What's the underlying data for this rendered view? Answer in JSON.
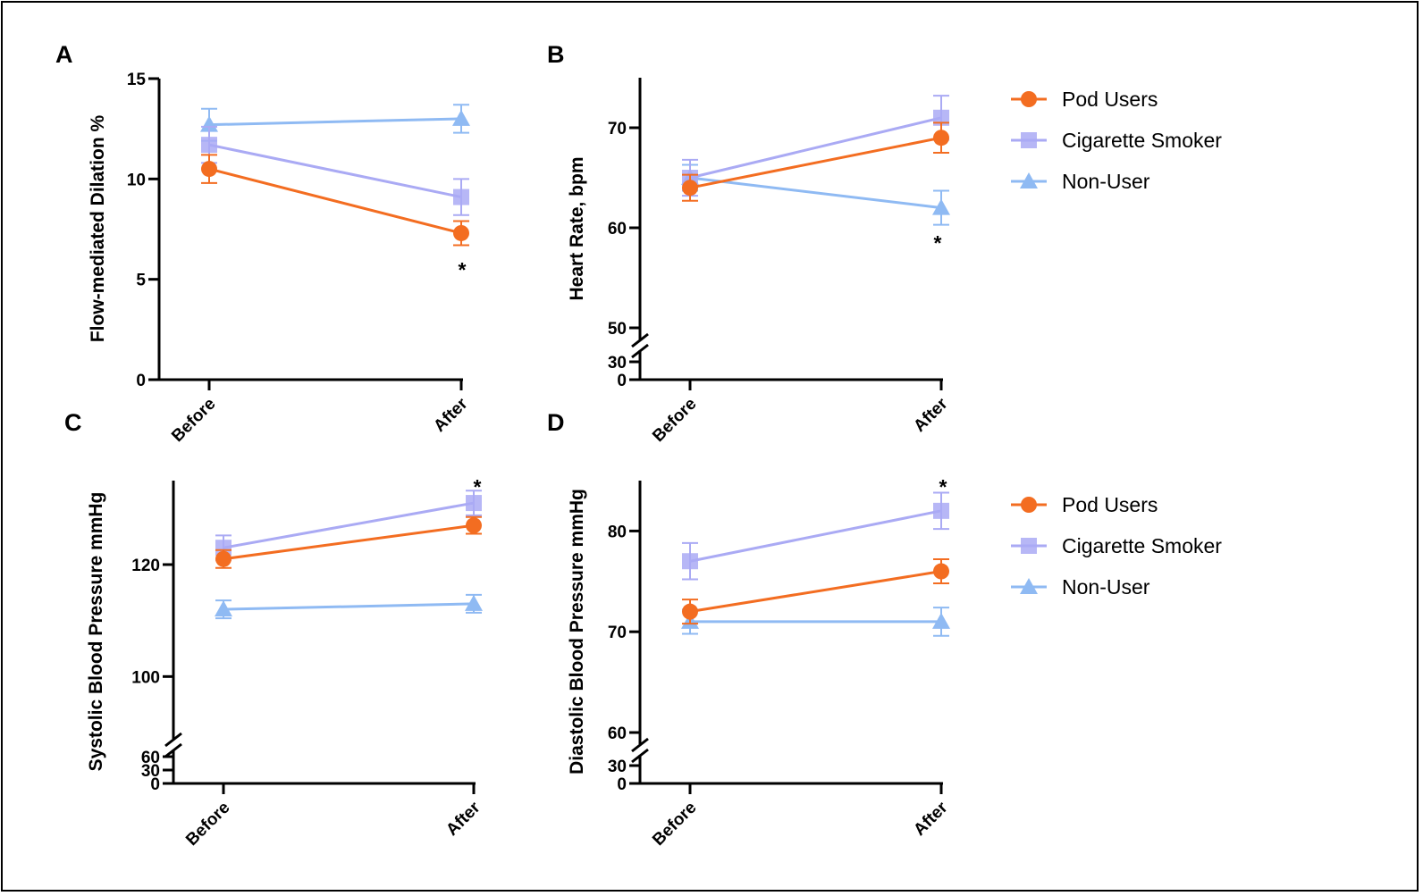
{
  "colors": {
    "pod_users": "#f36d21",
    "cigarette_smoker": "#aaaaf4",
    "non_user": "#8fbaf3",
    "axis": "#000000"
  },
  "legend_top": [
    {
      "label": "Pod Users",
      "marker": "circle"
    },
    {
      "label": "Cigarette Smoker",
      "marker": "square"
    },
    {
      "label": "Non-User",
      "marker": "triangle"
    }
  ],
  "legend_bottom": [
    {
      "label": "Pod Users",
      "marker": "circle"
    },
    {
      "label": "Cigarette Smoker",
      "marker": "square"
    },
    {
      "label": "Non-User",
      "marker": "triangle"
    }
  ],
  "chart_data": [
    {
      "type": "line",
      "panel": "A",
      "ylabel": "Flow-mediated Dilation %",
      "categories": [
        "Before",
        "After"
      ],
      "yticks": [
        0,
        5,
        10,
        15
      ],
      "ylim": [
        0,
        15
      ],
      "axis_break": null,
      "series": [
        {
          "name": "Pod Users",
          "values": [
            10.5,
            7.3
          ],
          "errors": [
            0.7,
            0.6
          ]
        },
        {
          "name": "Cigarette Smoker",
          "values": [
            11.7,
            9.1
          ],
          "errors": [
            0.9,
            0.9
          ]
        },
        {
          "name": "Non-User",
          "values": [
            12.7,
            13.0
          ],
          "errors": [
            0.8,
            0.7
          ]
        }
      ],
      "annotations": [
        {
          "text": "*",
          "category": "After"
        }
      ]
    },
    {
      "type": "line",
      "panel": "B",
      "ylabel": "Heart Rate, bpm",
      "categories": [
        "Before",
        "After"
      ],
      "yticks": [
        0,
        30,
        50,
        60,
        70
      ],
      "ylim": [
        0,
        75
      ],
      "axis_break": [
        30,
        50
      ],
      "series": [
        {
          "name": "Pod Users",
          "values": [
            64,
            69
          ],
          "errors": [
            1.3,
            1.5
          ]
        },
        {
          "name": "Cigarette Smoker",
          "values": [
            65,
            71
          ],
          "errors": [
            1.8,
            2.2
          ]
        },
        {
          "name": "Non-User",
          "values": [
            65,
            62
          ],
          "errors": [
            1.3,
            1.7
          ]
        }
      ],
      "annotations": [
        {
          "text": "*",
          "category": "After"
        }
      ]
    },
    {
      "type": "line",
      "panel": "C",
      "ylabel": "Systolic Blood Pressure mmHg",
      "categories": [
        "Before",
        "After"
      ],
      "yticks": [
        0,
        30,
        60,
        100,
        120
      ],
      "ylim": [
        0,
        135
      ],
      "axis_break": [
        60,
        90
      ],
      "series": [
        {
          "name": "Pod Users",
          "values": [
            121,
            127
          ],
          "errors": [
            1.6,
            1.5
          ]
        },
        {
          "name": "Cigarette Smoker",
          "values": [
            123,
            131
          ],
          "errors": [
            2.2,
            2.2
          ]
        },
        {
          "name": "Non-User",
          "values": [
            112,
            113
          ],
          "errors": [
            1.6,
            1.6
          ]
        }
      ],
      "annotations": [
        {
          "text": "*",
          "category": "After"
        }
      ]
    },
    {
      "type": "line",
      "panel": "D",
      "ylabel": "Diastolic Blood Pressure mmHg",
      "categories": [
        "Before",
        "After"
      ],
      "yticks": [
        0,
        30,
        60,
        70,
        80
      ],
      "ylim": [
        0,
        85
      ],
      "axis_break": [
        30,
        60
      ],
      "series": [
        {
          "name": "Pod Users",
          "values": [
            72,
            76
          ],
          "errors": [
            1.2,
            1.2
          ]
        },
        {
          "name": "Cigarette Smoker",
          "values": [
            77,
            82
          ],
          "errors": [
            1.8,
            1.8
          ]
        },
        {
          "name": "Non-User",
          "values": [
            71,
            71
          ],
          "errors": [
            1.2,
            1.4
          ]
        }
      ],
      "annotations": [
        {
          "text": "*",
          "category": "After"
        }
      ]
    }
  ]
}
